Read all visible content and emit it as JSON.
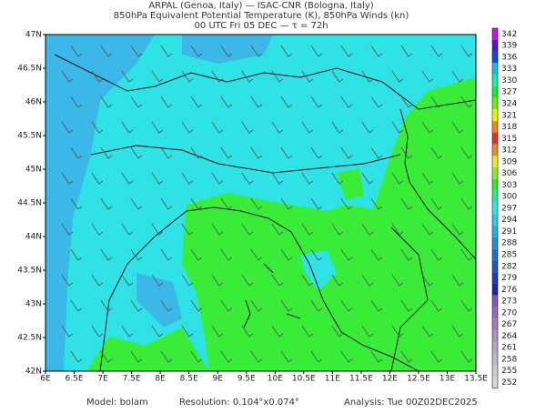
{
  "header": {
    "lines": [
      "ARPAL (Genoa, Italy)   —   ISAC-CNR (Bologna, Italy)",
      "850hPa Equivalent Potential Temperature (K), 850hPa Winds (kn)",
      "00 UTC Fri 05 DEC  —  τ = 72h"
    ]
  },
  "map": {
    "x_labels": [
      "6E",
      "6.5E",
      "7E",
      "7.5E",
      "8E",
      "8.5E",
      "9E",
      "9.5E",
      "10E",
      "10.5E",
      "11E",
      "11.5E",
      "12E",
      "12.5E",
      "13E",
      "13.5E"
    ],
    "y_labels": [
      "47N",
      "46.5N",
      "46N",
      "45.5N",
      "45N",
      "44.5N",
      "44N",
      "43.5N",
      "43N",
      "42.5N",
      "42N"
    ]
  },
  "colorbar": {
    "labels": [
      342,
      339,
      336,
      333,
      330,
      327,
      324,
      321,
      318,
      315,
      312,
      309,
      306,
      303,
      300,
      297,
      294,
      291,
      288,
      285,
      282,
      279,
      276,
      273,
      270,
      267,
      264,
      261,
      258,
      255,
      252
    ]
  },
  "footer": {
    "model": "Model: bolam",
    "resolution": "Resolution: 0.104°x0.074°",
    "analysis": "Analysis: Tue 00Z02DEC2025"
  }
}
